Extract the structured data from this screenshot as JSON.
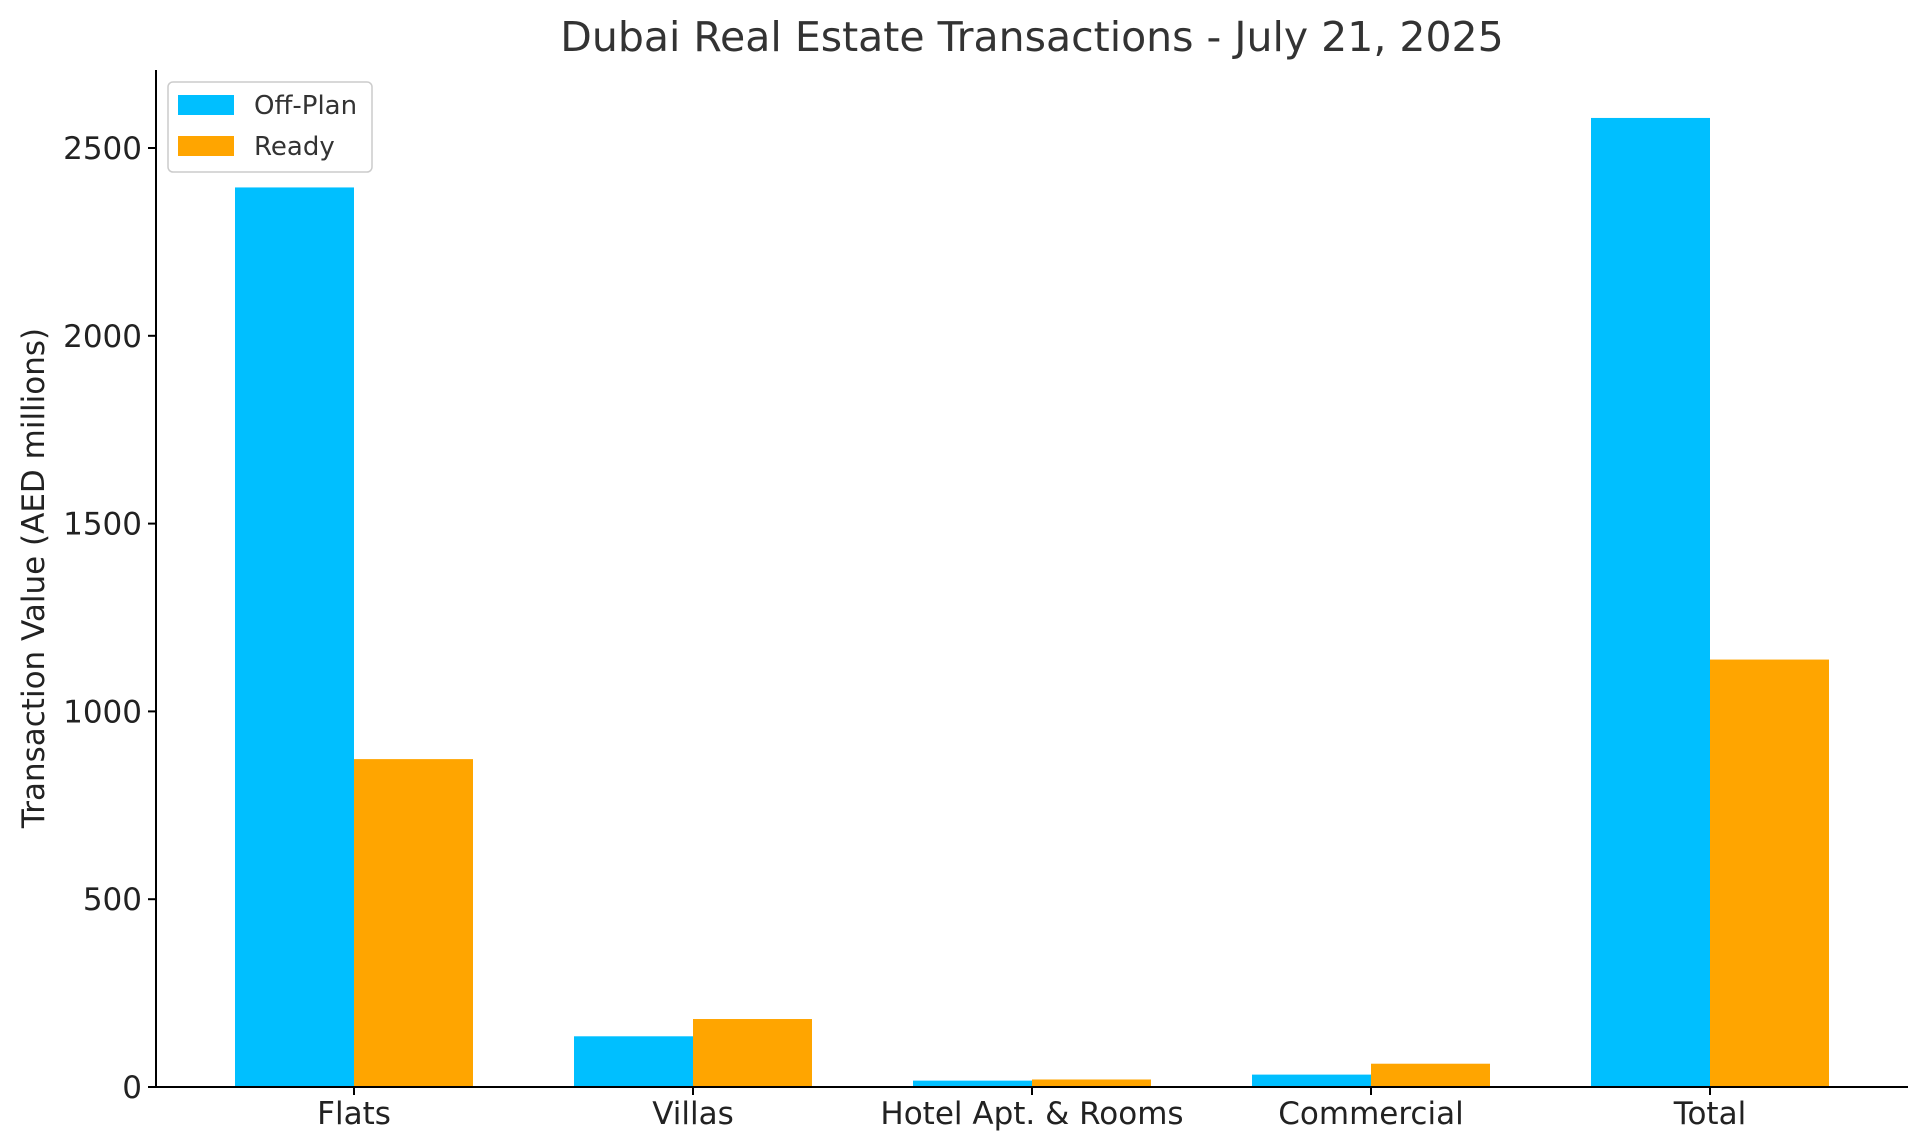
{
  "chart_data": {
    "type": "bar",
    "title": "Dubai Real Estate Transactions - July 21, 2025",
    "xlabel": "",
    "ylabel": "Transaction Value (AED millions)",
    "categories": [
      "Flats",
      "Villas",
      "Hotel Apt. & Rooms",
      "Commercial",
      "Total"
    ],
    "series": [
      {
        "name": "Off-Plan",
        "color": "#00BFFF",
        "values": [
          2395,
          135,
          17,
          33,
          2580
        ]
      },
      {
        "name": "Ready",
        "color": "#FFA500",
        "values": [
          873,
          181,
          20,
          62,
          1138
        ]
      }
    ],
    "ylim": [
      0,
      2710
    ],
    "yticks": [
      0,
      500,
      1000,
      1500,
      2000,
      2500
    ],
    "grid": false,
    "legend": "top-left"
  }
}
